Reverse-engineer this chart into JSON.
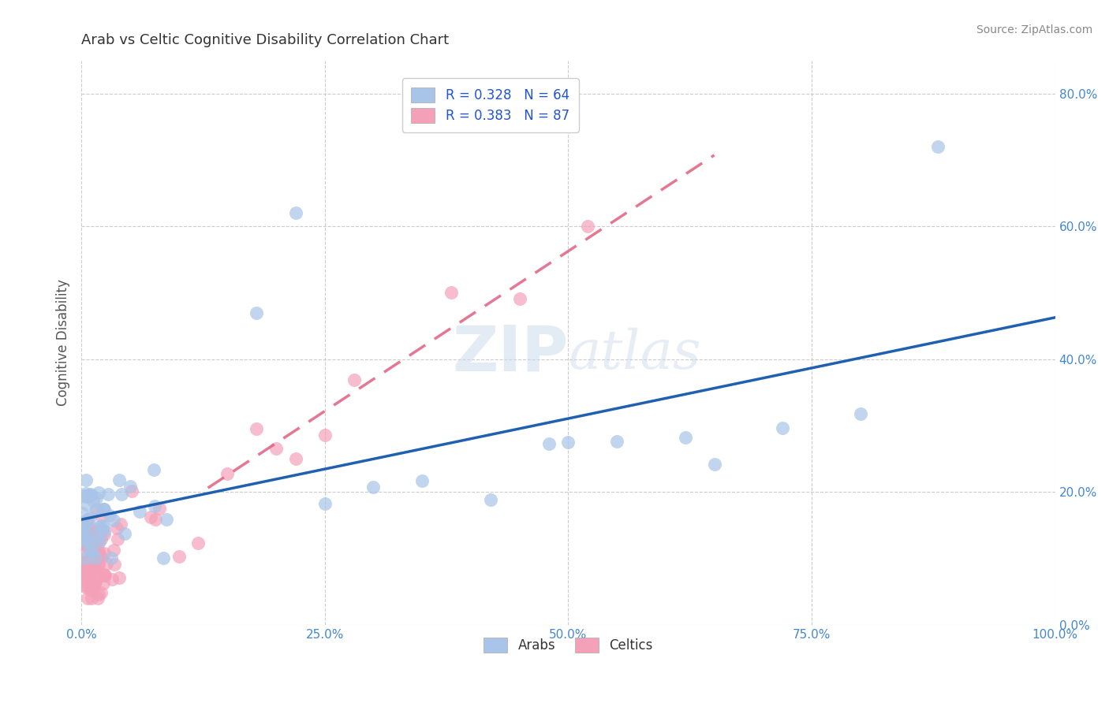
{
  "title": "Arab vs Celtic Cognitive Disability Correlation Chart",
  "source": "Source: ZipAtlas.com",
  "ylabel": "Cognitive Disability",
  "xlim": [
    0.0,
    1.0
  ],
  "ylim": [
    0.0,
    0.85
  ],
  "xticks": [
    0.0,
    0.25,
    0.5,
    0.75,
    1.0
  ],
  "xtick_labels": [
    "0.0%",
    "25.0%",
    "50.0%",
    "75.0%",
    "100.0%"
  ],
  "ytick_labels": [
    "0.0%",
    "20.0%",
    "40.0%",
    "60.0%",
    "80.0%"
  ],
  "yticks": [
    0.0,
    0.2,
    0.4,
    0.6,
    0.8
  ],
  "arab_R": 0.328,
  "arab_N": 64,
  "celtic_R": 0.383,
  "celtic_N": 87,
  "arab_color": "#a8c4e8",
  "celtic_color": "#f4a0b8",
  "arab_line_color": "#2060b0",
  "celtic_line_color": "#e06080",
  "grid_color": "#cccccc",
  "background_color": "#ffffff",
  "legend_label_arab": "Arabs",
  "legend_label_celtic": "Celtics"
}
